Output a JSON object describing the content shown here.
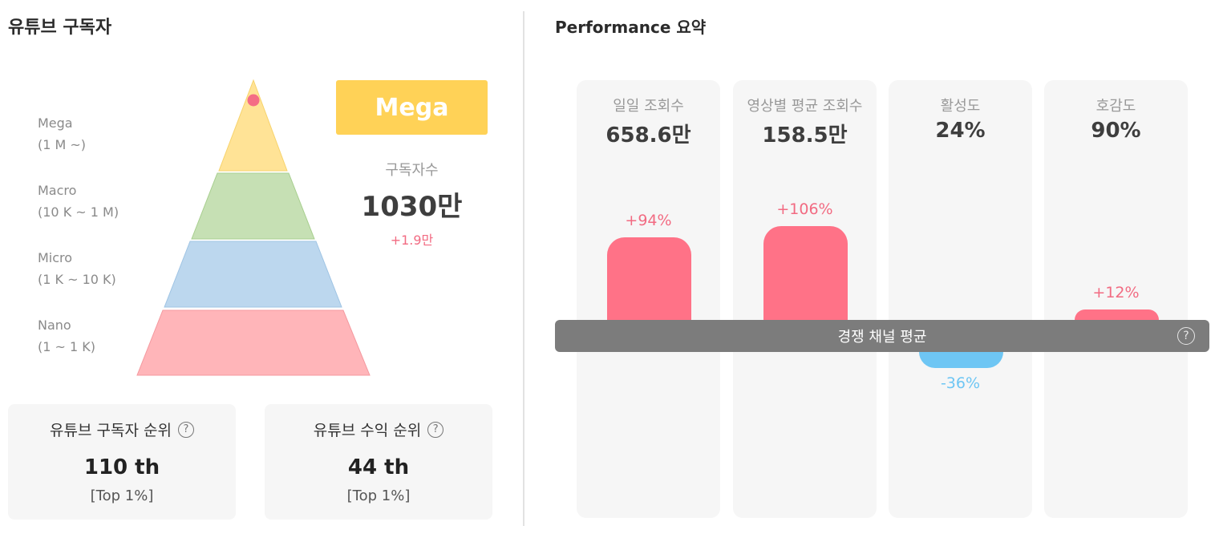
{
  "left": {
    "title": "유튜브 구독자",
    "tiers": [
      {
        "name": "Mega",
        "range": "(1 M ~)",
        "color": "#ffe396"
      },
      {
        "name": "Macro",
        "range": "(10 K ~ 1 M)",
        "color": "#c6e0b4"
      },
      {
        "name": "Micro",
        "range": "(1 K ~ 10 K)",
        "color": "#bcd7ee"
      },
      {
        "name": "Nano",
        "range": "(1 ~ 1 K)",
        "color": "#ffb5b9"
      }
    ],
    "current_tier": "Mega",
    "badge_color": "#ffd257",
    "subscribers_label": "구독자수",
    "subscribers_value": "1030만",
    "subscribers_change": "+1.9만",
    "ranks": [
      {
        "title": "유튜브 구독자 순위",
        "value": "110 th",
        "top": "[Top 1%]"
      },
      {
        "title": "유튜브 수익 순위",
        "value": "44 th",
        "top": "[Top 1%]"
      }
    ]
  },
  "right": {
    "title": "Performance 요약",
    "metrics": [
      {
        "label": "일일 조회수",
        "value": "658.6만",
        "change_label": "+94%",
        "change": 94
      },
      {
        "label": "영상별 평균 조회수",
        "value": "158.5만",
        "change_label": "+106%",
        "change": 106
      },
      {
        "label": "활성도",
        "value": "24%",
        "change_label": "-36%",
        "change": -36
      },
      {
        "label": "호감도",
        "value": "90%",
        "change_label": "+12%",
        "change": 12
      }
    ],
    "average_band_label": "경쟁 채널 평균",
    "positive_color": "#ff7287",
    "negative_color": "#6ec6f4"
  },
  "icons": {
    "help": "?"
  }
}
